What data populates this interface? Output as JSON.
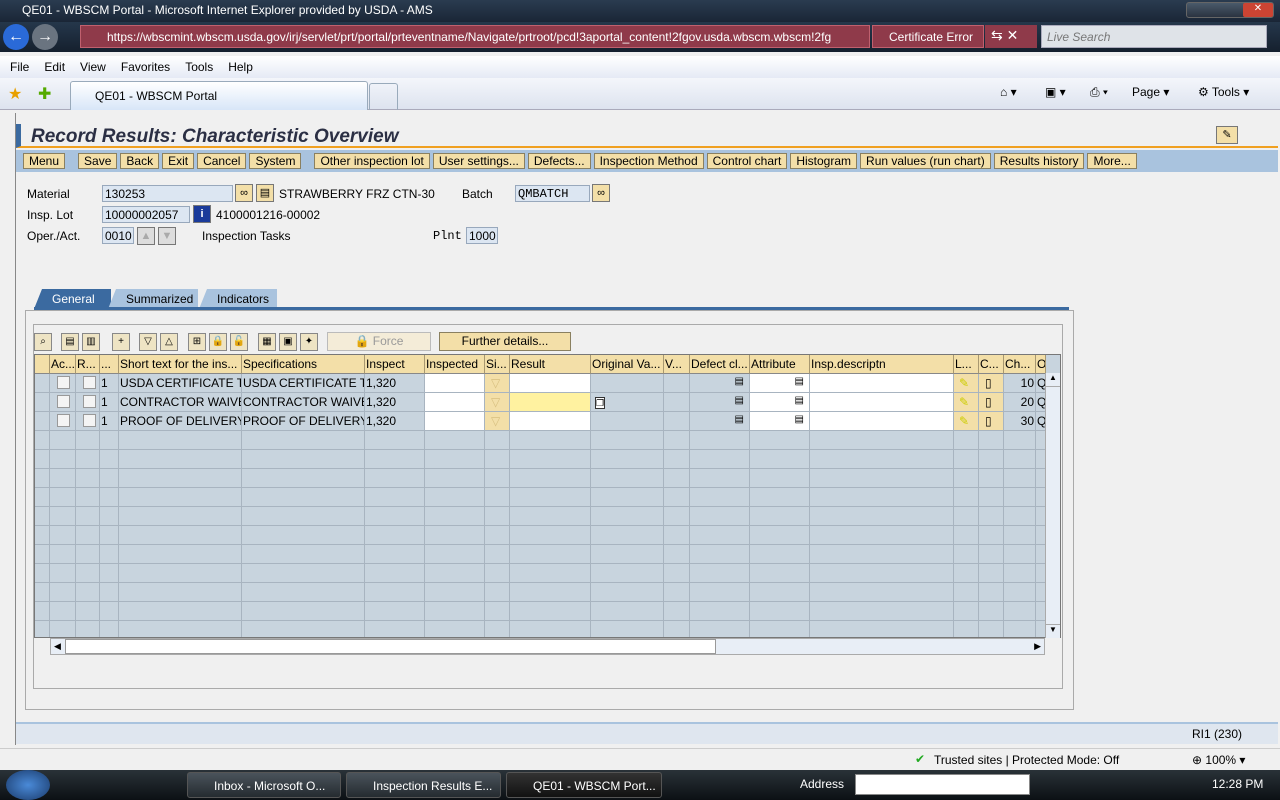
{
  "browser": {
    "window_title": "QE01 - WBSCM Portal - Microsoft Internet Explorer provided by USDA - AMS",
    "url": "https://wbscmint.wbscm.usda.gov/irj/servlet/prt/portal/prteventname/Navigate/prtroot/pcd!3aportal_content!2fgov.usda.wbscm.wbscm!2fg",
    "certificate": "Certificate Error",
    "search_placeholder": "Live Search",
    "menu": [
      "File",
      "Edit",
      "View",
      "Favorites",
      "Tools",
      "Help"
    ],
    "tab": "QE01 - WBSCM Portal",
    "page_label": "Page",
    "tools_label": "Tools",
    "status": "Trusted sites | Protected Mode: Off",
    "zoom": "100%"
  },
  "sap": {
    "title": "Record Results: Characteristic Overview",
    "toolbar": [
      "Menu",
      "Save",
      "Back",
      "Exit",
      "Cancel",
      "System",
      "Other inspection lot",
      "User settings...",
      "Defects...",
      "Inspection Method",
      "Control chart",
      "Histogram",
      "Run values (run chart)",
      "Results history",
      "More..."
    ],
    "header": {
      "material_label": "Material",
      "material": "130253",
      "material_desc": "STRAWBERRY FRZ CTN-30",
      "batch_label": "Batch",
      "batch": "QMBATCH",
      "lot_label": "Insp. Lot",
      "lot": "10000002057",
      "lot_ref": "4100001216-00002",
      "oper_label": "Oper./Act.",
      "oper": "0010",
      "oper_desc": "Inspection Tasks",
      "plant_label": "Plnt",
      "plant": "1000"
    },
    "tabs": [
      "General",
      "Summarized",
      "Indicators"
    ],
    "force_label": "Force",
    "further_label": "Further details...",
    "columns": [
      "Ac...",
      "R...",
      "...",
      "Short text for the ins...",
      "Specifications",
      "Inspect",
      "Inspected",
      "Si...",
      "Result",
      "Original Va...",
      "V...",
      "Defect cl...",
      "Attribute",
      "Insp.descriptn",
      "L...",
      "C...",
      "Ch...",
      "O"
    ],
    "rows": [
      {
        "n": "1",
        "short": "USDA CERTIFICATE T",
        "spec": "USDA CERTIFICATE T",
        "inspect": "1,320",
        "ch": "10",
        "o": "Q"
      },
      {
        "n": "1",
        "short": "CONTRACTOR WAIVE",
        "spec": "CONTRACTOR WAIVE",
        "inspect": "1,320",
        "ch": "20",
        "o": "Q"
      },
      {
        "n": "1",
        "short": "PROOF OF DELIVERY",
        "spec": "PROOF OF DELIVERY",
        "inspect": "1,320",
        "ch": "30",
        "o": "Q"
      }
    ],
    "system_status": "RI1 (230)"
  },
  "taskbar": {
    "items": [
      "Inbox - Microsoft O...",
      "Inspection Results E...",
      "QE01 - WBSCM Port..."
    ],
    "address_label": "Address",
    "clock": "12:28 PM"
  }
}
